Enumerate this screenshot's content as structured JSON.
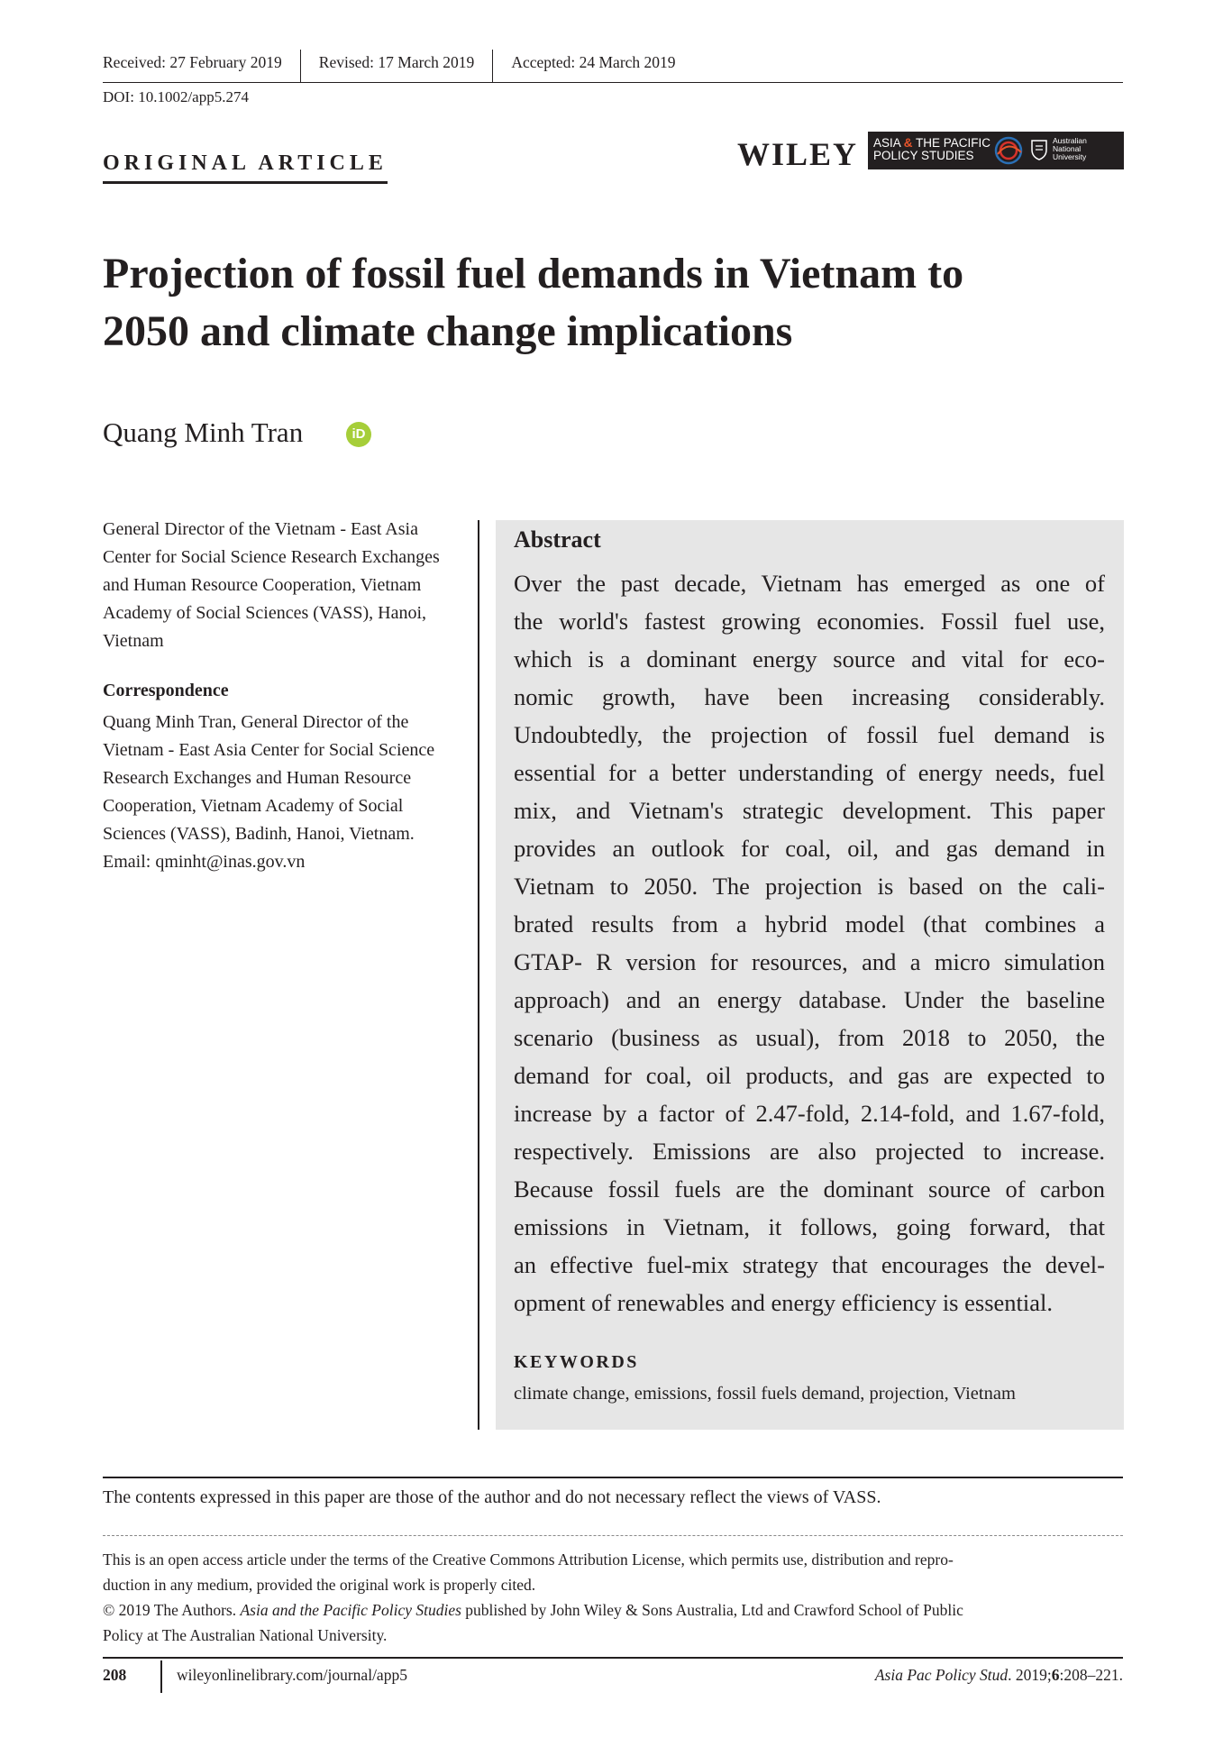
{
  "header": {
    "received": "Received: 27 February 2019",
    "revised": "Revised: 17 March 2019",
    "accepted": "Accepted: 24 March 2019",
    "doi": "DOI: 10.1002/app5.274",
    "article_type": "ORIGINAL ARTICLE",
    "publisher": "WILEY",
    "journal_logo_line1_a": "ASIA ",
    "journal_logo_amp": "&",
    "journal_logo_line1_b": " THE PACIFIC",
    "journal_logo_line2": "POLICY STUDIES",
    "anu_line1": "Australian",
    "anu_line2": "National",
    "anu_line3": "University"
  },
  "title_line1": "Projection of fossil fuel demands in Vietnam to",
  "title_line2": "2050 and climate change implications",
  "author": "Quang Minh Tran",
  "orcid_label": "iD",
  "affiliation": "General Director of the Vietnam - East Asia Center for Social Science Research Exchanges and Human Resource Cooperation, Vietnam Academy of Social Sciences (VASS), Hanoi, Vietnam",
  "correspondence_heading": "Correspondence",
  "correspondence": "Quang Minh Tran, General Director of the Vietnam - East Asia Center for Social Science Research Exchanges and Human Resource Cooperation, Vietnam Academy of Social Sciences (VASS), Badinh, Hanoi, Vietnam.",
  "email": "Email: qminht@inas.gov.vn",
  "abstract_heading": "Abstract",
  "abstract_lines": [
    "Over the past decade, Vietnam has emerged as one of",
    "the world's fastest growing economies. Fossil fuel use,",
    "which is a dominant energy source and vital for eco-",
    "nomic growth, have been increasing considerably.",
    "Undoubtedly, the projection of fossil fuel demand is",
    "essential for a better understanding of energy needs, fuel",
    "mix, and Vietnam's strategic development. This paper",
    "provides an outlook for coal, oil, and gas demand in",
    "Vietnam to 2050. The projection is based on the cali-",
    "brated results from a hybrid model (that combines a",
    "GTAP- R version for resources, and a micro simulation",
    "approach) and an energy database. Under the baseline",
    "scenario (business as usual), from 2018 to 2050, the",
    "demand for coal, oil products, and gas are expected to",
    "increase by a factor of 2.47-fold, 2.14-fold, and 1.67-fold,",
    "respectively. Emissions are also projected to increase.",
    "Because fossil fuels are the dominant source of carbon",
    "emissions in Vietnam, it follows, going forward, that",
    "an effective fuel-mix strategy that encourages the devel-",
    "opment of renewables and energy efficiency is essential."
  ],
  "keywords_heading": "KEYWORDS",
  "keywords": "climate change, emissions, fossil fuels demand, projection, Vietnam",
  "footer": {
    "disclaimer": "The contents expressed in this paper are those of the author and do not necessary reflect the views of VASS.",
    "license_line1": "This is an open access article under the terms of the Creative Commons Attribution License, which permits use, distribution and repro-",
    "license_line2": "duction in any medium, provided the original work is properly cited.",
    "copyright_a": "© 2019 The Authors. ",
    "copyright_journal": "Asia and the Pacific Policy Studies",
    "copyright_b": " published by John Wiley & Sons Australia, Ltd and Crawford School of Public",
    "copyright_line2": "Policy at The Australian National University.",
    "page_number": "208",
    "url": "wileyonlinelibrary.com/journal/app5",
    "cite_journal": "Asia Pac Policy Stud",
    "cite_year": ". 2019;",
    "cite_volume": "6",
    "cite_pages": ":208–221."
  }
}
